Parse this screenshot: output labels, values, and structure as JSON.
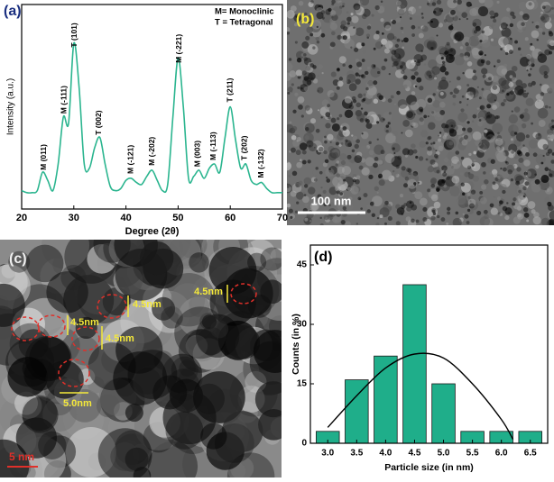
{
  "chart_data": [
    {
      "type": "line",
      "panel": "(a)",
      "x_label": "Degree (2θ)",
      "y_label": "Intensity (a.u.)",
      "legend": [
        "M= Monoclinic",
        "T = Tetragonal"
      ],
      "color": "#2bb58f",
      "xlim": [
        20,
        70
      ],
      "xticks": [
        20,
        30,
        40,
        50,
        60,
        70
      ],
      "ylim": [
        0,
        100
      ],
      "x": [
        20,
        21,
        22,
        23,
        24,
        25,
        26,
        27,
        28,
        29,
        30,
        31,
        32,
        33,
        34,
        35,
        36,
        37,
        38,
        39,
        40,
        41,
        42,
        43,
        44,
        45,
        46,
        47,
        48,
        49,
        50,
        51,
        52,
        53,
        54,
        55,
        56,
        57,
        58,
        59,
        60,
        61,
        62,
        63,
        64,
        65,
        66,
        67,
        68,
        69,
        70
      ],
      "values": [
        9,
        8,
        8,
        9,
        18,
        14,
        9,
        22,
        45,
        42,
        81,
        60,
        22,
        20,
        30,
        35,
        22,
        11,
        9,
        10,
        14,
        15,
        13,
        12,
        16,
        19,
        14,
        9,
        12,
        45,
        74,
        50,
        15,
        16,
        19,
        15,
        20,
        22,
        18,
        35,
        50,
        34,
        20,
        22,
        14,
        12,
        13,
        10,
        8,
        8,
        8
      ],
      "annotations": [
        {
          "label": "M (011)",
          "x": 24.3
        },
        {
          "label": "M (-111)",
          "x": 28.2
        },
        {
          "label": "T (101)",
          "x": 30.2
        },
        {
          "label": "T (002)",
          "x": 34.8
        },
        {
          "label": "M (-121)",
          "x": 41
        },
        {
          "label": "M (-202)",
          "x": 45
        },
        {
          "label": "M (-221)",
          "x": 50.2
        },
        {
          "label": "M (003)",
          "x": 53.8
        },
        {
          "label": "M (-113)",
          "x": 56.8
        },
        {
          "label": "T (211)",
          "x": 60
        },
        {
          "label": "T (202)",
          "x": 62.8
        },
        {
          "label": "M (-132)",
          "x": 66
        }
      ]
    },
    {
      "type": "bar",
      "panel": "(d)",
      "x_label": "Particle size (in nm)",
      "y_label": "Counts (in %)",
      "color": "#1fae8a",
      "x": [
        3.0,
        3.5,
        4.0,
        4.5,
        5.0,
        5.5,
        6.0,
        6.5
      ],
      "values": [
        3,
        16,
        22,
        40,
        15,
        3,
        3,
        3
      ],
      "bar_width": 0.4,
      "xlim": [
        2.7,
        6.8
      ],
      "xticks": [
        {
          "value": 3,
          "label": "3.0"
        },
        3.5,
        {
          "value": 4,
          "label": "4.0"
        },
        4.5,
        {
          "value": 5,
          "label": "5.0"
        },
        5.5,
        {
          "value": 6,
          "label": "6.0"
        },
        6.5
      ],
      "ylim": [
        0,
        50
      ],
      "yticks": [
        0,
        15,
        30,
        45
      ],
      "fit": {
        "color": "#000000",
        "x": [
          3.0,
          3.5,
          4.0,
          4.5,
          5.0,
          5.5,
          6.0,
          6.2
        ],
        "values": [
          4,
          12,
          19,
          22.5,
          21.5,
          15,
          6,
          1
        ]
      }
    }
  ],
  "images": [
    {
      "label": "(b)",
      "scale_bar": "100 nm"
    },
    {
      "label": "(c)",
      "scale_bar": "5 nm",
      "sizes": [
        "4.5nm",
        "4.5nm",
        "4.5nm",
        "4.5nm",
        "5.0nm"
      ]
    }
  ]
}
